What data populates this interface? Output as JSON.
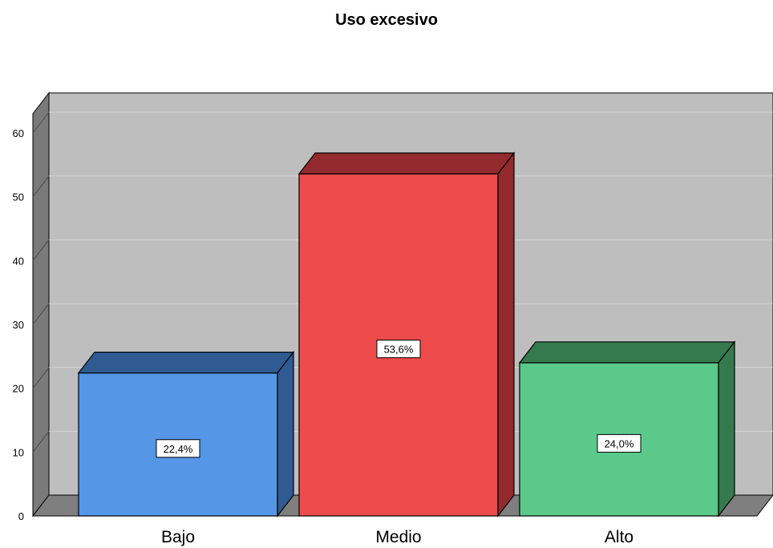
{
  "chart_data": {
    "type": "bar",
    "title": "Uso excesivo",
    "xlabel": "",
    "ylabel": "",
    "ylim": [
      0,
      60
    ],
    "yticks": [
      0,
      10,
      20,
      30,
      40,
      50,
      60
    ],
    "categories": [
      "Bajo",
      "Medio",
      "Alto"
    ],
    "values": [
      22.4,
      53.6,
      24.0
    ],
    "data_labels": [
      "22,4%",
      "53,6%",
      "24,0%"
    ],
    "grid": true,
    "style": "3d",
    "colors": {
      "front": [
        "#5596e6",
        "#ed4b4b",
        "#5ac98a"
      ],
      "top": [
        "#2f5a92",
        "#922a2e",
        "#347a4e"
      ],
      "side": [
        "#2f5a92",
        "#922a2e",
        "#347a4e"
      ],
      "plot_background": "#bebebe",
      "wall": "#7a7a7a",
      "floor": "#7f7f7f",
      "gridline": "#d4d4d4"
    }
  }
}
